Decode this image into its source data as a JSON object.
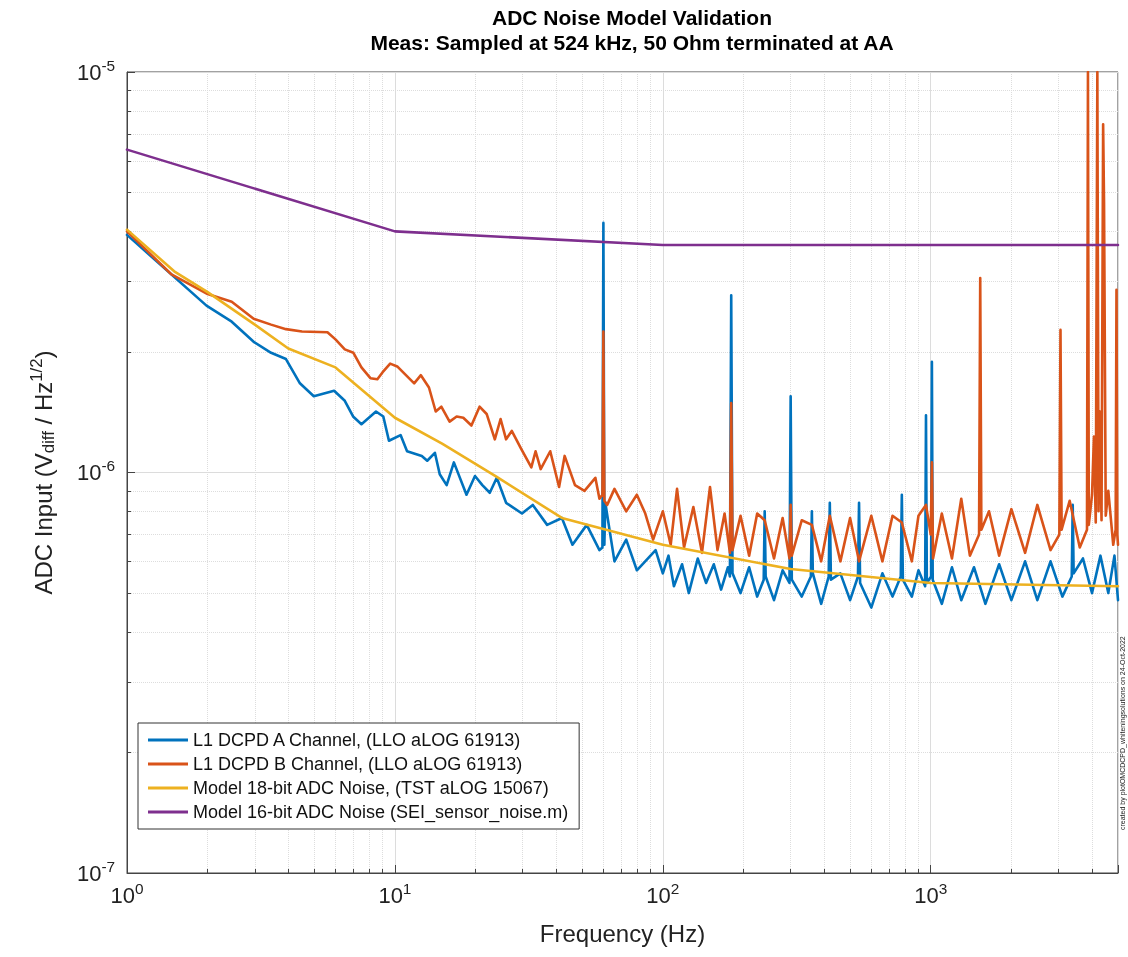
{
  "chart_data": {
    "type": "line",
    "title": "ADC Noise Model Validation",
    "subtitle": "Meas: Sampled at 524 kHz, 50 Ohm terminated at AA",
    "xlabel": "Frequency (Hz)",
    "ylabel": "ADC Input (V$_{diff}$ / Hz$^{1/2}$)",
    "log": "xy",
    "grid": true,
    "legend": "bottom left",
    "marker": "none",
    "line_style": "solid",
    "xlim": [
      1,
      5000
    ],
    "ylim": [
      1e-07,
      1e-05
    ],
    "xticks": [
      {
        "value": 1,
        "label": "10$^{0}$"
      },
      {
        "value": 10,
        "label": "10$^{1}$"
      },
      {
        "value": 100,
        "label": "10$^{2}$"
      },
      {
        "value": 1000,
        "label": "10$^{3}$"
      }
    ],
    "yticks": [
      {
        "value": 1e-07,
        "label": "10$^{-7}$"
      },
      {
        "value": 1e-06,
        "label": "10$^{-6}$"
      },
      {
        "value": 1e-05,
        "label": "10$^{-5}$"
      }
    ],
    "annotations": [
      "created by plotOMCDCPD_whiteningsolutions on 24-Oct-2022"
    ],
    "series": [
      {
        "name": "L1 DCPD A Channel, (LLO aLOG 61913)",
        "color": "#0072bd",
        "x": [
          1,
          1.98,
          2.46,
          2.97,
          3.45,
          3.92,
          4.42,
          4.98,
          5.93,
          6.5,
          6.98,
          7.5,
          8.5,
          9.05,
          9.5,
          10.5,
          11.1,
          12.6,
          13.2,
          14.1,
          14.7,
          15.6,
          16.6,
          18.5,
          19.9,
          21.2,
          22.6,
          24,
          26,
          29.8,
          32.7,
          37,
          42,
          46,
          52,
          58,
          59.5,
          60,
          60.5,
          61,
          66,
          73,
          80,
          94,
          100,
          105,
          110,
          118,
          125,
          135,
          145,
          155,
          165,
          175,
          178,
          180,
          182,
          195,
          210,
          225,
          238,
          240,
          242,
          260,
          280,
          297,
          300,
          303,
          330,
          357,
          360,
          363,
          390,
          416,
          420,
          424,
          460,
          500,
          535,
          540,
          545,
          600,
          660,
          720,
          773,
          780,
          787,
          850,
          900,
          953,
          960,
          967,
          1003,
          1010,
          1017,
          1100,
          1200,
          1300,
          1450,
          1600,
          1800,
          2000,
          2250,
          2500,
          2800,
          3100,
          3360,
          3388,
          3415,
          3700,
          4000,
          4300,
          4600,
          4850,
          5000
        ],
        "values": [
          3.92e-06,
          2.61e-06,
          2.38e-06,
          2.12e-06,
          1.99e-06,
          1.92e-06,
          1.67e-06,
          1.55e-06,
          1.6e-06,
          1.51e-06,
          1.38e-06,
          1.32e-06,
          1.42e-06,
          1.38e-06,
          1.2e-06,
          1.24e-06,
          1.13e-06,
          1.1e-06,
          1.07e-06,
          1.12e-06,
          9.9e-07,
          9.3e-07,
          1.06e-06,
          8.8e-07,
          9.8e-07,
          9.3e-07,
          8.9e-07,
          9.7e-07,
          8.4e-07,
          7.9e-07,
          8.3e-07,
          7.4e-07,
          7.7e-07,
          6.6e-07,
          7.4e-07,
          6.4e-07,
          6.5e-07,
          4.2e-06,
          6.6e-07,
          8.4e-07,
          6e-07,
          6.8e-07,
          5.7e-07,
          6.4e-07,
          5.6e-07,
          6.2e-07,
          5.2e-07,
          5.9e-07,
          5e-07,
          6.1e-07,
          5.3e-07,
          5.9e-07,
          5.1e-07,
          5.8e-07,
          5.5e-07,
          2.77e-06,
          5.6e-07,
          5e-07,
          5.8e-07,
          4.9e-07,
          5.4e-07,
          8e-07,
          5.5e-07,
          4.8e-07,
          5.7e-07,
          5.3e-07,
          1.55e-06,
          5.4e-07,
          4.9e-07,
          5.5e-07,
          8e-07,
          5.6e-07,
          4.7e-07,
          5.5e-07,
          8.4e-07,
          5.4e-07,
          5.6e-07,
          4.8e-07,
          5.5e-07,
          8.4e-07,
          5.3e-07,
          4.6e-07,
          5.6e-07,
          4.9e-07,
          5.5e-07,
          8.8e-07,
          5.4e-07,
          4.9e-07,
          5.7e-07,
          5.2e-07,
          1.39e-06,
          5.3e-07,
          5.5e-07,
          1.89e-06,
          5.4e-07,
          4.7e-07,
          5.8e-07,
          4.8e-07,
          5.8e-07,
          4.7e-07,
          5.9e-07,
          4.8e-07,
          6e-07,
          4.8e-07,
          6e-07,
          4.9e-07,
          5.5e-07,
          8.3e-07,
          5.6e-07,
          6.1e-07,
          5e-07,
          6.2e-07,
          5e-07,
          6.2e-07,
          4.8e-07
        ]
      },
      {
        "name": "L1 DCPD B Channel, (LLO aLOG 61913)",
        "color": "#d95319",
        "x": [
          1,
          1.46,
          2,
          2.46,
          2.97,
          3.45,
          3.92,
          4.5,
          5.6,
          6,
          6.5,
          7,
          7.5,
          8.1,
          8.6,
          9,
          9.6,
          10.2,
          10.9,
          11.8,
          12.5,
          13.4,
          14.2,
          14.9,
          16,
          17,
          18,
          19.3,
          20.7,
          22,
          23.6,
          24.8,
          26,
          27.3,
          29.5,
          32.3,
          33.5,
          35,
          38,
          41,
          43,
          47,
          51,
          56,
          58,
          59.5,
          60,
          60.5,
          62,
          66,
          73,
          80,
          86,
          92,
          100,
          107,
          113,
          120,
          130,
          140,
          150,
          160,
          170,
          178,
          180,
          182,
          195,
          210,
          225,
          240,
          260,
          280,
          297,
          300,
          303,
          330,
          360,
          390,
          420,
          460,
          500,
          540,
          600,
          660,
          720,
          780,
          850,
          900,
          960,
          1000,
          1010,
          1020,
          1100,
          1200,
          1300,
          1400,
          1515,
          1530,
          1545,
          1650,
          1800,
          2000,
          2250,
          2500,
          2800,
          3020,
          3050,
          3080,
          3300,
          3600,
          3830,
          3862,
          3890,
          4000,
          4066,
          4130,
          4187,
          4230,
          4272,
          4340,
          4400,
          4435,
          4500,
          4600,
          4800,
          4900,
          4935,
          4970,
          5000
        ],
        "values": [
          4e-06,
          3.13e-06,
          2.79e-06,
          2.67e-06,
          2.42e-06,
          2.34e-06,
          2.28e-06,
          2.25e-06,
          2.24e-06,
          2.15e-06,
          2.03e-06,
          1.99e-06,
          1.83e-06,
          1.72e-06,
          1.71e-06,
          1.78e-06,
          1.87e-06,
          1.84e-06,
          1.76e-06,
          1.67e-06,
          1.75e-06,
          1.63e-06,
          1.42e-06,
          1.46e-06,
          1.34e-06,
          1.38e-06,
          1.37e-06,
          1.31e-06,
          1.46e-06,
          1.4e-06,
          1.21e-06,
          1.36e-06,
          1.21e-06,
          1.27e-06,
          1.15e-06,
          1.03e-06,
          1.13e-06,
          1.02e-06,
          1.13e-06,
          9.2e-07,
          1.1e-06,
          9.3e-07,
          9e-07,
          9.7e-07,
          8.6e-07,
          8.8e-07,
          2.25e-06,
          8.5e-07,
          8.3e-07,
          9.1e-07,
          8e-07,
          8.8e-07,
          7.9e-07,
          6.8e-07,
          8e-07,
          6.6e-07,
          9.1e-07,
          6.5e-07,
          8.2e-07,
          6.3e-07,
          9.2e-07,
          6.4e-07,
          7.9e-07,
          6.3e-07,
          1.49e-06,
          6.4e-07,
          7.8e-07,
          6.2e-07,
          7.9e-07,
          7.6e-07,
          6.1e-07,
          7.7e-07,
          6.1e-07,
          8.3e-07,
          6.2e-07,
          7.6e-07,
          7.4e-07,
          6e-07,
          7.8e-07,
          6e-07,
          7.7e-07,
          6e-07,
          7.8e-07,
          6e-07,
          7.8e-07,
          7.5e-07,
          6e-07,
          7.8e-07,
          8.3e-07,
          7e-07,
          1.06e-06,
          6.1e-07,
          7.9e-07,
          6.1e-07,
          8.6e-07,
          6.2e-07,
          7e-07,
          3.06e-06,
          7.2e-07,
          8e-07,
          6.2e-07,
          8.1e-07,
          6.3e-07,
          8.3e-07,
          6.4e-07,
          7e-07,
          2.27e-06,
          7.2e-07,
          8.5e-07,
          6.5e-07,
          7.2e-07,
          1e-05,
          7.4e-07,
          8.8e-07,
          1.23e-06,
          7.5e-07,
          1e-05,
          8e-07,
          1.42e-06,
          7.6e-07,
          7.4e-06,
          4.7e-06,
          7.8e-07,
          9e-07,
          6.6e-07,
          7.2e-07,
          2.86e-06,
          7e-07,
          6.6e-07
        ]
      },
      {
        "name": "Model 18-bit ADC Noise, (TST aLOG 15067)",
        "color": "#edb120",
        "x": [
          1,
          1.5,
          2,
          3,
          4,
          6,
          10,
          15,
          24,
          42,
          100,
          300,
          1000,
          5000
        ],
        "values": [
          4.04e-06,
          3.18e-06,
          2.82e-06,
          2.34e-06,
          2.04e-06,
          1.83e-06,
          1.37e-06,
          1.18e-06,
          9.75e-07,
          7.7e-07,
          6.6e-07,
          5.74e-07,
          5.3e-07,
          5.2e-07
        ]
      },
      {
        "name": "Model 16-bit ADC Noise (SEI_sensor_noise.m)",
        "color": "#7e2f8e",
        "x": [
          1,
          10,
          100,
          5000
        ],
        "values": [
          6.4e-06,
          4e-06,
          3.7e-06,
          3.7e-06
        ]
      }
    ]
  }
}
